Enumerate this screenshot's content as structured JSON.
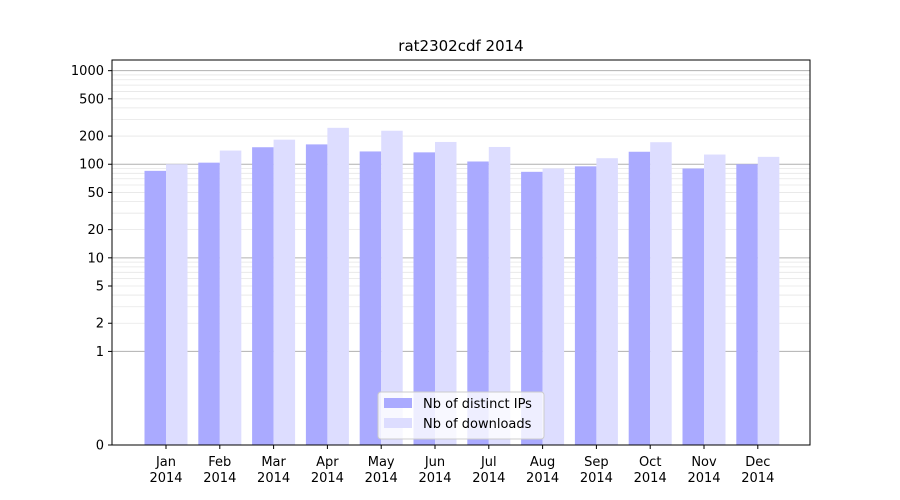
{
  "chart_data": {
    "type": "bar",
    "title": "rat2302cdf 2014",
    "xlabel": "",
    "ylabel": "",
    "yscale": "symlog",
    "ylim": [
      0,
      1300
    ],
    "y_ticks": [
      0,
      1,
      2,
      5,
      10,
      20,
      50,
      100,
      200,
      500,
      1000
    ],
    "y_tick_labels": [
      "0",
      "1",
      "2",
      "5",
      "10",
      "20",
      "50",
      "100",
      "200",
      "500",
      "1000"
    ],
    "grid": true,
    "legend_position": "lower center",
    "categories": [
      [
        "Jan",
        "2014"
      ],
      [
        "Feb",
        "2014"
      ],
      [
        "Mar",
        "2014"
      ],
      [
        "Apr",
        "2014"
      ],
      [
        "May",
        "2014"
      ],
      [
        "Jun",
        "2014"
      ],
      [
        "Jul",
        "2014"
      ],
      [
        "Aug",
        "2014"
      ],
      [
        "Sep",
        "2014"
      ],
      [
        "Oct",
        "2014"
      ],
      [
        "Nov",
        "2014"
      ],
      [
        "Dec",
        "2014"
      ]
    ],
    "series": [
      {
        "name": "Nb of distinct IPs",
        "color": "#aaaaff",
        "values": [
          85,
          104,
          152,
          163,
          137,
          134,
          107,
          83,
          95,
          136,
          90,
          100
        ]
      },
      {
        "name": "Nb of downloads",
        "color": "#ddddff",
        "values": [
          100,
          140,
          183,
          245,
          228,
          173,
          153,
          90,
          116,
          172,
          127,
          120
        ]
      }
    ]
  }
}
